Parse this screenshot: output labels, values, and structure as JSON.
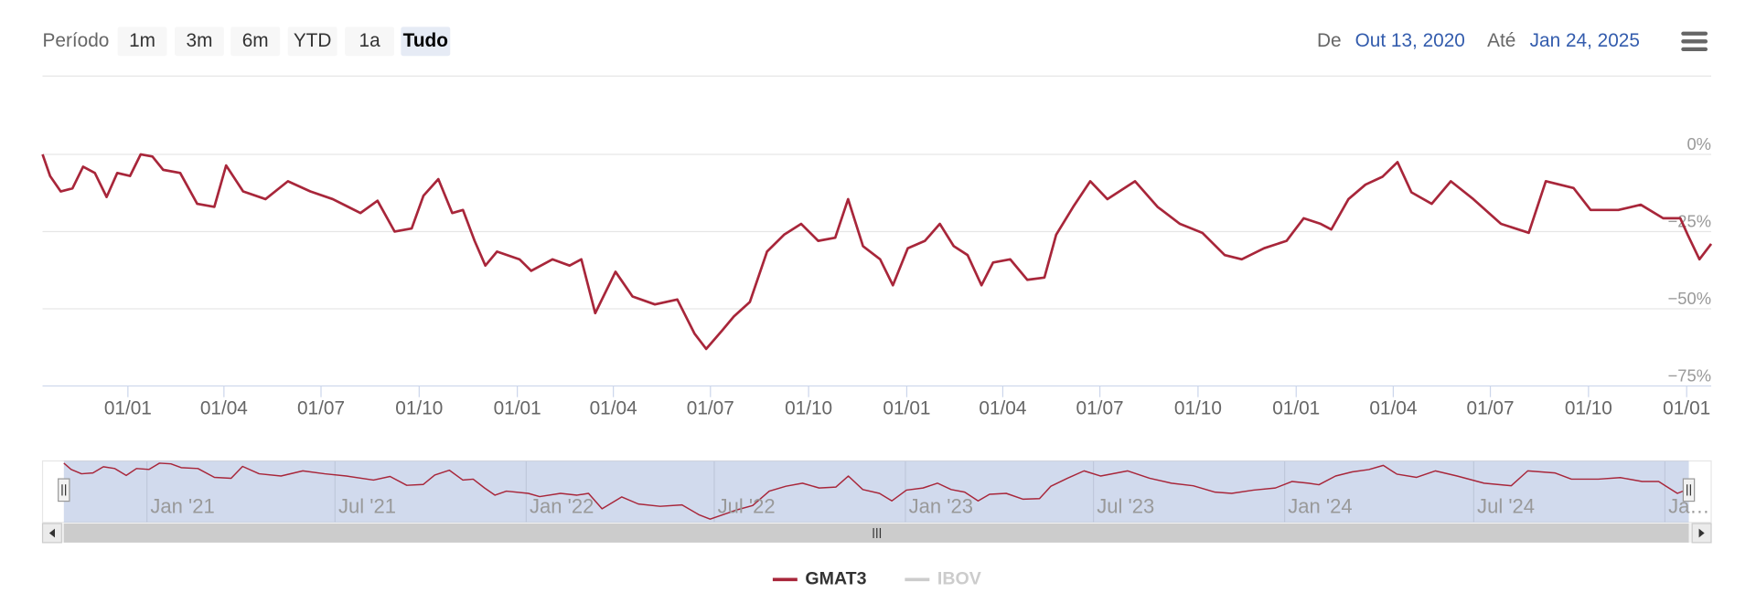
{
  "range_selector": {
    "label": "Período",
    "buttons": [
      "1m",
      "3m",
      "6m",
      "YTD",
      "1a",
      "Tudo"
    ],
    "selected": 5
  },
  "date_range": {
    "from_label": "De",
    "from": "Out 13, 2020",
    "to_label": "Até",
    "to": "Jan 24, 2025"
  },
  "chart_data": {
    "type": "line",
    "x": [
      "2020-10-13",
      "2020-10-20",
      "2020-10-30",
      "2020-11-10",
      "2020-11-20",
      "2020-12-01",
      "2020-12-12",
      "2020-12-22",
      "2021-01-03",
      "2021-01-13",
      "2021-01-24",
      "2021-02-03",
      "2021-02-19",
      "2021-03-07",
      "2021-03-23",
      "2021-04-03",
      "2021-04-19",
      "2021-05-10",
      "2021-05-31",
      "2021-06-21",
      "2021-07-12",
      "2021-08-07",
      "2021-08-23",
      "2021-09-08",
      "2021-09-24",
      "2021-10-05",
      "2021-10-19",
      "2021-11-01",
      "2021-11-11",
      "2021-11-22",
      "2021-12-02",
      "2021-12-13",
      "2022-01-03",
      "2022-01-14",
      "2022-02-03",
      "2022-02-19",
      "2022-03-02",
      "2022-03-15",
      "2022-04-03",
      "2022-04-19",
      "2022-05-10",
      "2022-05-31",
      "2022-06-16",
      "2022-06-27",
      "2022-07-12",
      "2022-07-23",
      "2022-08-07",
      "2022-08-23",
      "2022-09-08",
      "2022-09-24",
      "2022-10-10",
      "2022-10-26",
      "2022-11-07",
      "2022-11-21",
      "2022-12-07",
      "2022-12-19",
      "2023-01-02",
      "2023-01-18",
      "2023-02-01",
      "2023-02-14",
      "2023-02-27",
      "2023-03-12",
      "2023-03-23",
      "2023-04-08",
      "2023-04-24",
      "2023-05-10",
      "2023-05-21",
      "2023-06-06",
      "2023-06-22",
      "2023-07-08",
      "2023-08-03",
      "2023-08-24",
      "2023-09-14",
      "2023-10-05",
      "2023-10-26",
      "2023-11-11",
      "2023-12-02",
      "2023-12-23",
      "2024-01-08",
      "2024-01-24",
      "2024-02-03",
      "2024-02-19",
      "2024-03-06",
      "2024-03-22",
      "2024-04-05",
      "2024-04-18",
      "2024-05-07",
      "2024-05-25",
      "2024-06-15",
      "2024-07-11",
      "2024-08-06",
      "2024-08-22",
      "2024-09-17",
      "2024-10-03",
      "2024-10-29",
      "2024-11-19",
      "2024-12-10",
      "2024-12-26",
      "2025-01-02",
      "2025-01-13",
      "2025-01-24"
    ],
    "series": [
      {
        "name": "GMAT3",
        "color": "#a8263a",
        "values": [
          0,
          -7,
          -12,
          -11,
          -4,
          -6,
          -13.8,
          -6,
          -7,
          0,
          -0.7,
          -5,
          -6,
          -16,
          -17,
          -3.6,
          -12,
          -14.5,
          -8.7,
          -12,
          -14.5,
          -19,
          -15,
          -25,
          -24,
          -13.4,
          -8,
          -19,
          -18,
          -28,
          -36,
          -31.5,
          -34,
          -37.7,
          -34,
          -36,
          -34,
          -51.4,
          -38,
          -46,
          -48.6,
          -47,
          -58,
          -63,
          -57,
          -52.5,
          -47.8,
          -31.5,
          -26,
          -22.5,
          -28,
          -27,
          -14.5,
          -29.7,
          -34,
          -42.4,
          -30.4,
          -28,
          -22.5,
          -29.7,
          -32.6,
          -42.4,
          -35,
          -34,
          -40.6,
          -39.9,
          -26,
          -17,
          -8.7,
          -14.5,
          -8.7,
          -17,
          -22.5,
          -25.4,
          -32.6,
          -34,
          -30.4,
          -28,
          -20.7,
          -22.5,
          -24.3,
          -14.5,
          -9.8,
          -7.2,
          -2.5,
          -12.3,
          -16,
          -8.7,
          -14.5,
          -22.5,
          -25.4,
          -8.7,
          -10.9,
          -18,
          -18,
          -16.3,
          -20.7,
          -20.7,
          -26,
          -34,
          -29
        ]
      }
    ],
    "inactive_legend": [
      {
        "name": "IBOV",
        "color": "#cccccc"
      }
    ],
    "xlim": [
      "2020-10-13",
      "2025-01-24"
    ],
    "xticks": [
      {
        "value": "2021-01-01",
        "label": "01/01"
      },
      {
        "value": "2021-04-01",
        "label": "01/04"
      },
      {
        "value": "2021-07-01",
        "label": "01/07"
      },
      {
        "value": "2021-10-01",
        "label": "01/10"
      },
      {
        "value": "2022-01-01",
        "label": "01/01"
      },
      {
        "value": "2022-04-01",
        "label": "01/04"
      },
      {
        "value": "2022-07-01",
        "label": "01/07"
      },
      {
        "value": "2022-10-01",
        "label": "01/10"
      },
      {
        "value": "2023-01-01",
        "label": "01/01"
      },
      {
        "value": "2023-04-01",
        "label": "01/04"
      },
      {
        "value": "2023-07-01",
        "label": "01/07"
      },
      {
        "value": "2023-10-01",
        "label": "01/10"
      },
      {
        "value": "2024-01-01",
        "label": "01/01"
      },
      {
        "value": "2024-04-01",
        "label": "01/04"
      },
      {
        "value": "2024-07-01",
        "label": "01/07"
      },
      {
        "value": "2024-10-01",
        "label": "01/10"
      },
      {
        "value": "2025-01-01",
        "label": "01/01"
      }
    ],
    "ylim": [
      -75,
      25
    ],
    "yticks": [
      {
        "value": 0,
        "label": "0%"
      },
      {
        "value": -25,
        "label": "−25%"
      },
      {
        "value": -50,
        "label": "−50%"
      },
      {
        "value": -75,
        "label": "−75%"
      }
    ],
    "grid": true,
    "navigator": {
      "xticks": [
        {
          "value": "2021-01-01",
          "label": "Jan '21"
        },
        {
          "value": "2021-07-01",
          "label": "Jul '21"
        },
        {
          "value": "2022-01-01",
          "label": "Jan '22"
        },
        {
          "value": "2022-07-01",
          "label": "Jul '22"
        },
        {
          "value": "2023-01-01",
          "label": "Jan '23"
        },
        {
          "value": "2023-07-01",
          "label": "Jul '23"
        },
        {
          "value": "2024-01-01",
          "label": "Jan '24"
        },
        {
          "value": "2024-07-01",
          "label": "Jul '24"
        },
        {
          "value": "2025-01-01",
          "label": "Ja…"
        }
      ]
    }
  }
}
